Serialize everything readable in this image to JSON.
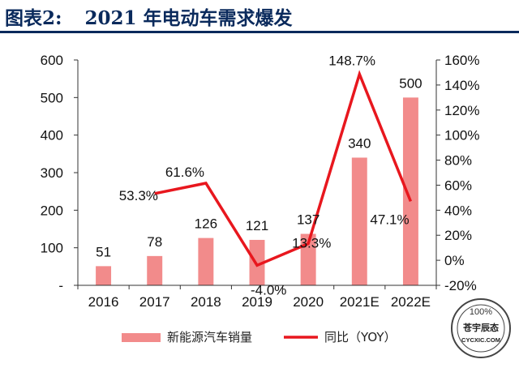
{
  "header": {
    "prefix": "图表2:",
    "title": "2021 年电动车需求爆发"
  },
  "chart_data": {
    "type": "bar",
    "categories": [
      "2016",
      "2017",
      "2018",
      "2019",
      "2020",
      "2021E",
      "2022E"
    ],
    "series": [
      {
        "name": "新能源汽车销量",
        "type": "bar",
        "axis": "left",
        "values": [
          51,
          78,
          126,
          121,
          137,
          340,
          500
        ],
        "labels": [
          "51",
          "78",
          "126",
          "121",
          "137",
          "340",
          "500"
        ],
        "color": "#f28b8b"
      },
      {
        "name": "同比（YOY）",
        "type": "line",
        "axis": "right",
        "values": [
          null,
          53.3,
          61.6,
          -4.0,
          13.3,
          148.7,
          47.1
        ],
        "labels": [
          "",
          "53.3%",
          "61.6%",
          "-4.0%",
          "13.3%",
          "148.7%",
          "47.1%"
        ],
        "color": "#e8171e"
      }
    ],
    "left_axis": {
      "ylim": [
        0,
        600
      ],
      "ticks": [
        0,
        100,
        200,
        300,
        400,
        500,
        600
      ],
      "tick_labels": [
        "-",
        "100",
        "200",
        "300",
        "400",
        "500",
        "600"
      ]
    },
    "right_axis": {
      "ylim": [
        -20,
        160
      ],
      "ticks": [
        -20,
        0,
        20,
        40,
        60,
        80,
        100,
        120,
        140,
        160
      ],
      "tick_labels": [
        "-20%",
        "0%",
        "20%",
        "40%",
        "60%",
        "80%",
        "100%",
        "120%",
        "140%",
        "160%"
      ]
    },
    "legend": {
      "position": "bottom",
      "entries": [
        "新能源汽车销量",
        "同比（YOY）"
      ]
    },
    "grid": false
  },
  "watermark": {
    "line1": "100%",
    "line2": "苍宇辰态",
    "line3": "CYCXIC.COM"
  }
}
